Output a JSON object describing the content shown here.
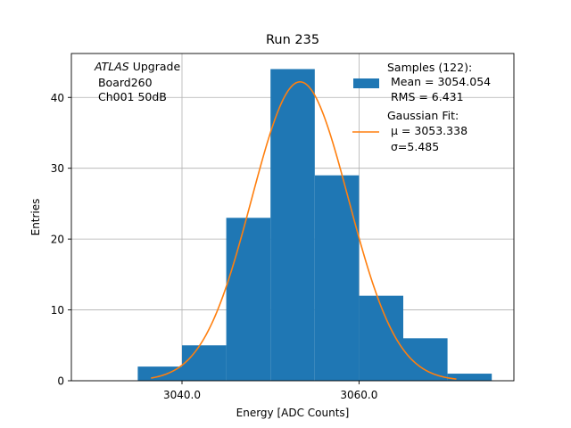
{
  "chart_data": {
    "type": "bar",
    "title": "Run 235",
    "xlabel": "Energy [ADC Counts]",
    "ylabel": "Entries",
    "xlim": [
      3027.5,
      3077.5
    ],
    "ylim": [
      0,
      46.2
    ],
    "x_ticks": [
      3040.0,
      3060.0
    ],
    "x_tick_labels": [
      "3040.0",
      "3060.0"
    ],
    "y_ticks": [
      0,
      10,
      20,
      30,
      40
    ],
    "y_tick_labels": [
      "0",
      "10",
      "20",
      "30",
      "40"
    ],
    "grid": true,
    "legend_position": "top-right",
    "histogram": {
      "bin_edges": [
        3035,
        3040,
        3045,
        3050,
        3055,
        3060,
        3065,
        3070,
        3075
      ],
      "counts": [
        2,
        5,
        23,
        44,
        29,
        12,
        6,
        1
      ],
      "color": "#1f77b4"
    },
    "fit": {
      "type": "gaussian",
      "mu": 3053.338,
      "sigma": 5.485,
      "amplitude": 42.2,
      "x_range": [
        3036.5,
        3071.0
      ],
      "color": "#ff7f0e"
    },
    "annotation": {
      "lines": [
        "ATLAS Upgrade",
        " Board260",
        " Ch001 50dB"
      ],
      "italic_word": "ATLAS",
      "position": "top-left"
    },
    "legend": {
      "samples": [
        "Samples (122):",
        " Mean = 3054.054",
        " RMS = 6.431"
      ],
      "fit": [
        "Gaussian Fit:",
        "μ = 3053.338",
        "σ=5.485"
      ]
    }
  }
}
